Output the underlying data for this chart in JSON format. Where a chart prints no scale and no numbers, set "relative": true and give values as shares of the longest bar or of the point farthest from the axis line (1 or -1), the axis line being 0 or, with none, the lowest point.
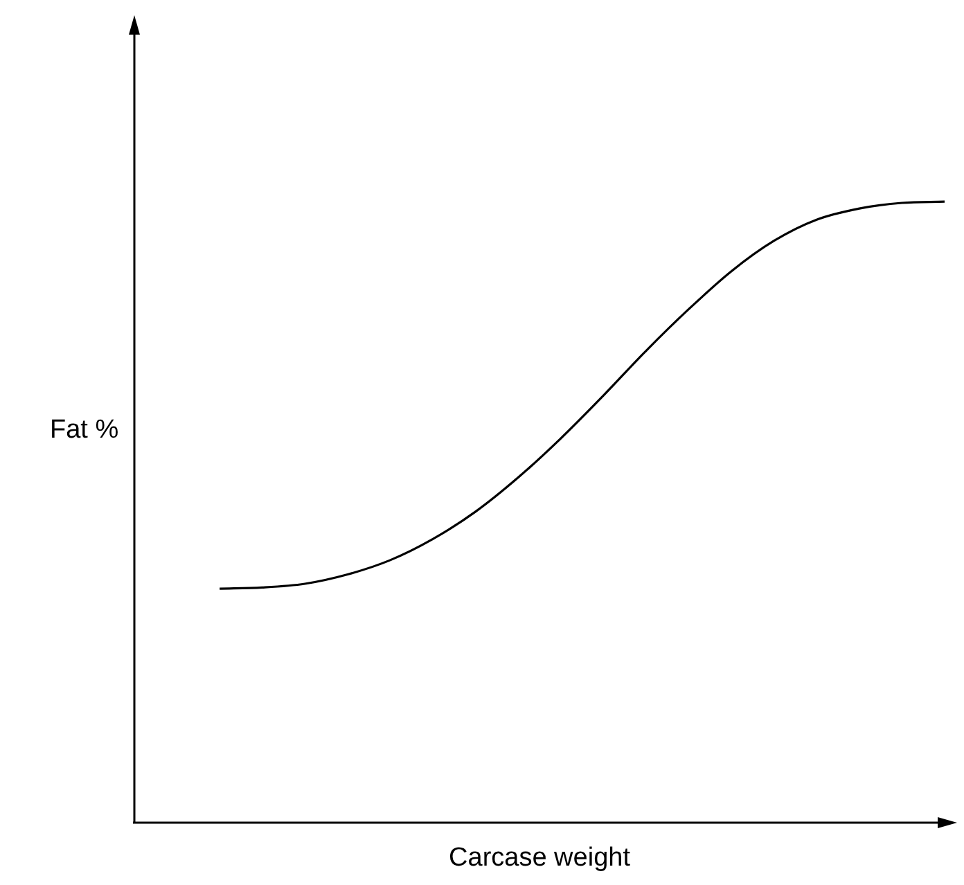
{
  "chart_data": {
    "type": "line",
    "xlabel": "Carcase weight",
    "ylabel": "Fat %",
    "relative": true,
    "grid": false,
    "legend": false,
    "marker": "none",
    "line_style": "solid",
    "categories": [
      null,
      null,
      null,
      null,
      null,
      null,
      null,
      null,
      null,
      null,
      null,
      null,
      null,
      null,
      null,
      null,
      null,
      null,
      null,
      null
    ],
    "series": [
      {
        "color": "#000000",
        "values": [
          null,
          null,
          0.377,
          0.379,
          0.385,
          0.4,
          0.423,
          0.457,
          0.501,
          0.556,
          0.619,
          0.688,
          0.76,
          0.827,
          0.888,
          0.937,
          0.971,
          0.989,
          0.998,
          1
        ]
      }
    ]
  }
}
